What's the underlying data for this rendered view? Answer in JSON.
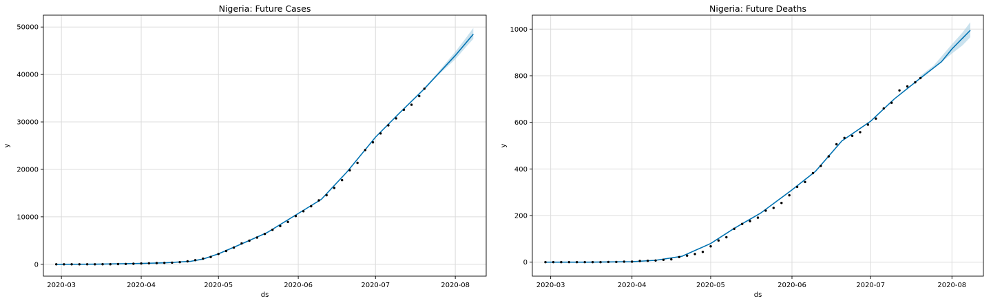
{
  "chart_data": [
    {
      "type": "line",
      "title": "Nigeria: Future Cases",
      "xlabel": "ds",
      "ylabel": "y",
      "xlim": [
        "2020-02-23",
        "2020-08-13"
      ],
      "ylim": [
        -2500,
        52500
      ],
      "x_ticks": [
        "2020-03",
        "2020-04",
        "2020-05",
        "2020-06",
        "2020-07",
        "2020-08"
      ],
      "y_ticks": [
        0,
        10000,
        20000,
        30000,
        40000,
        50000
      ],
      "grid": true,
      "colors": {
        "forecast": "#0072b2",
        "interval": "#a6cee3",
        "observed": "#000000"
      },
      "series": [
        {
          "role": "forecast",
          "x": [
            "2020-02-28",
            "2020-03-15",
            "2020-04-01",
            "2020-04-10",
            "2020-04-20",
            "2020-04-25",
            "2020-05-01",
            "2020-05-10",
            "2020-05-20",
            "2020-06-01",
            "2020-06-10",
            "2020-06-20",
            "2020-07-01",
            "2020-07-10",
            "2020-07-20",
            "2020-08-01",
            "2020-08-08"
          ],
          "y": [
            0,
            20,
            180,
            300,
            600,
            1100,
            2200,
            4300,
            6700,
            10700,
            13700,
            19500,
            26800,
            31700,
            37000,
            44000,
            48500
          ]
        },
        {
          "role": "interval_upper",
          "x": [
            "2020-07-20",
            "2020-07-25",
            "2020-08-01",
            "2020-08-05",
            "2020-08-08"
          ],
          "y": [
            37200,
            40300,
            44800,
            47600,
            49800
          ]
        },
        {
          "role": "interval_lower",
          "x": [
            "2020-07-20",
            "2020-07-25",
            "2020-08-01",
            "2020-08-05",
            "2020-08-08"
          ],
          "y": [
            36800,
            39700,
            43200,
            45700,
            47500
          ]
        },
        {
          "role": "observed",
          "x": [
            "2020-02-28",
            "2020-03-02",
            "2020-03-05",
            "2020-03-08",
            "2020-03-11",
            "2020-03-14",
            "2020-03-17",
            "2020-03-20",
            "2020-03-23",
            "2020-03-26",
            "2020-03-29",
            "2020-04-01",
            "2020-04-04",
            "2020-04-07",
            "2020-04-10",
            "2020-04-13",
            "2020-04-16",
            "2020-04-19",
            "2020-04-22",
            "2020-04-25",
            "2020-04-28",
            "2020-05-01",
            "2020-05-04",
            "2020-05-07",
            "2020-05-10",
            "2020-05-13",
            "2020-05-16",
            "2020-05-19",
            "2020-05-22",
            "2020-05-25",
            "2020-05-28",
            "2020-05-31",
            "2020-06-03",
            "2020-06-06",
            "2020-06-09",
            "2020-06-12",
            "2020-06-15",
            "2020-06-18",
            "2020-06-21",
            "2020-06-24",
            "2020-06-27",
            "2020-06-30",
            "2020-07-03",
            "2020-07-06",
            "2020-07-09",
            "2020-07-12",
            "2020-07-15",
            "2020-07-18",
            "2020-07-20"
          ],
          "y": [
            1,
            1,
            1,
            2,
            2,
            2,
            8,
            12,
            40,
            65,
            111,
            174,
            214,
            254,
            305,
            343,
            442,
            627,
            873,
            1182,
            1532,
            2170,
            2802,
            3526,
            4399,
            4971,
            5621,
            6401,
            7261,
            8068,
            8915,
            10162,
            11166,
            12233,
            13464,
            14554,
            16085,
            17735,
            19808,
            21371,
            24077,
            25694,
            27564,
            29286,
            30748,
            32558,
            33616,
            35454,
            37000
          ]
        }
      ]
    },
    {
      "type": "line",
      "title": "Nigeria: Future Deaths",
      "xlabel": "ds",
      "ylabel": "y",
      "xlim": [
        "2020-02-23",
        "2020-08-13"
      ],
      "ylim": [
        -60,
        1060
      ],
      "x_ticks": [
        "2020-03",
        "2020-04",
        "2020-05",
        "2020-06",
        "2020-07",
        "2020-08"
      ],
      "y_ticks": [
        0,
        200,
        400,
        600,
        800,
        1000
      ],
      "grid": true,
      "colors": {
        "forecast": "#0072b2",
        "interval": "#a6cee3",
        "observed": "#000000"
      },
      "series": [
        {
          "role": "forecast",
          "x": [
            "2020-02-28",
            "2020-03-15",
            "2020-04-01",
            "2020-04-10",
            "2020-04-20",
            "2020-05-01",
            "2020-05-10",
            "2020-05-20",
            "2020-06-01",
            "2020-06-10",
            "2020-06-20",
            "2020-07-01",
            "2020-07-10",
            "2020-07-20",
            "2020-07-28",
            "2020-08-01",
            "2020-08-08"
          ],
          "y": [
            0,
            0,
            2,
            8,
            25,
            80,
            145,
            210,
            310,
            390,
            520,
            605,
            700,
            790,
            860,
            915,
            995
          ]
        },
        {
          "role": "interval_upper",
          "x": [
            "2020-07-20",
            "2020-07-25",
            "2020-08-01",
            "2020-08-05",
            "2020-08-08"
          ],
          "y": [
            800,
            843,
            935,
            985,
            1030
          ]
        },
        {
          "role": "interval_lower",
          "x": [
            "2020-07-20",
            "2020-07-25",
            "2020-08-01",
            "2020-08-05",
            "2020-08-08"
          ],
          "y": [
            785,
            830,
            895,
            930,
            965
          ]
        },
        {
          "role": "observed",
          "x": [
            "2020-02-28",
            "2020-03-02",
            "2020-03-05",
            "2020-03-08",
            "2020-03-11",
            "2020-03-14",
            "2020-03-17",
            "2020-03-20",
            "2020-03-23",
            "2020-03-26",
            "2020-03-29",
            "2020-04-01",
            "2020-04-04",
            "2020-04-07",
            "2020-04-10",
            "2020-04-13",
            "2020-04-16",
            "2020-04-19",
            "2020-04-22",
            "2020-04-25",
            "2020-04-28",
            "2020-05-01",
            "2020-05-04",
            "2020-05-07",
            "2020-05-10",
            "2020-05-13",
            "2020-05-16",
            "2020-05-19",
            "2020-05-22",
            "2020-05-25",
            "2020-05-28",
            "2020-05-31",
            "2020-06-03",
            "2020-06-06",
            "2020-06-09",
            "2020-06-12",
            "2020-06-15",
            "2020-06-18",
            "2020-06-21",
            "2020-06-24",
            "2020-06-27",
            "2020-06-30",
            "2020-07-03",
            "2020-07-06",
            "2020-07-09",
            "2020-07-12",
            "2020-07-15",
            "2020-07-18",
            "2020-07-20"
          ],
          "y": [
            0,
            0,
            0,
            0,
            0,
            0,
            0,
            0,
            1,
            1,
            2,
            2,
            5,
            6,
            7,
            10,
            12,
            22,
            28,
            35,
            44,
            68,
            93,
            107,
            143,
            164,
            176,
            191,
            221,
            233,
            254,
            287,
            323,
            344,
            382,
            413,
            454,
            506,
            533,
            542,
            558,
            590,
            616,
            660,
            684,
            737,
            754,
            772,
            790
          ]
        }
      ]
    }
  ]
}
